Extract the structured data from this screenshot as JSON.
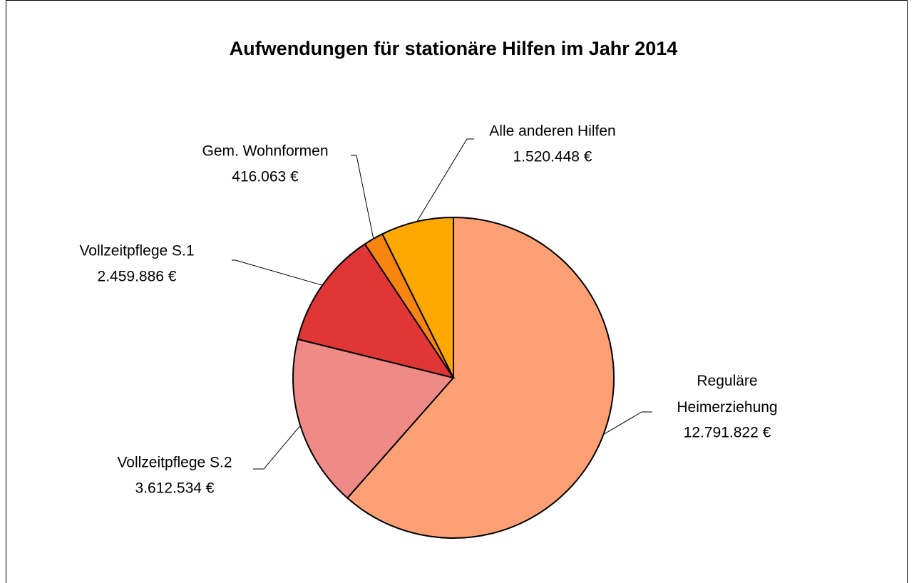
{
  "chart_data": {
    "type": "pie",
    "title": "Aufwendungen für stationäre Hilfen im Jahr 2014",
    "categories": [
      "Reguläre Heimerziehung",
      "Vollzeitpflege  S.2",
      "Vollzeitpflege  S.1",
      "Gem. Wohnformen",
      "Alle anderen Hilfen"
    ],
    "values": [
      12791822,
      3612534,
      2459886,
      416063,
      1520448
    ],
    "value_labels": [
      "12.791.822 €",
      "3.612.534 €",
      "2.459.886 €",
      "416.063 €",
      "1.520.448 €"
    ],
    "colors": [
      "#ffa074",
      "#f08a87",
      "#e03636",
      "#f7850f",
      "#ffa800"
    ]
  }
}
